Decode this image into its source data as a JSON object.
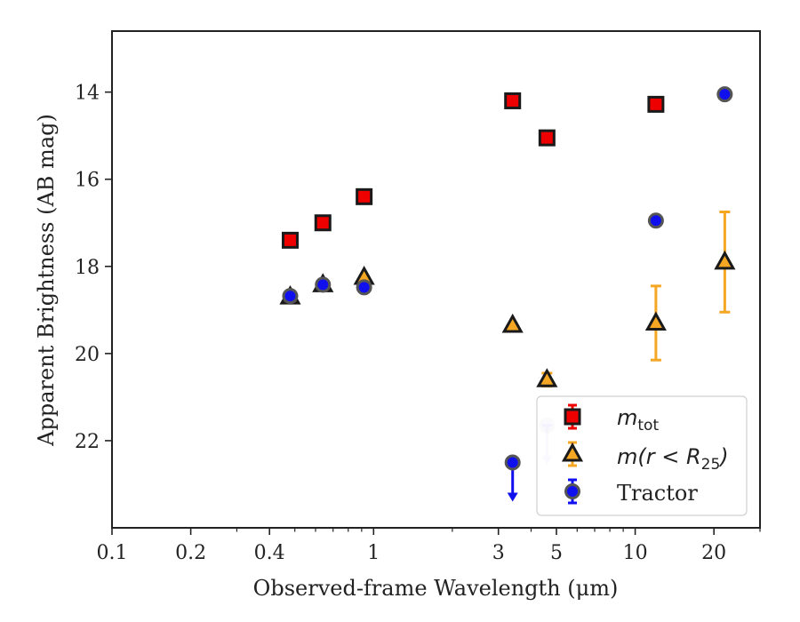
{
  "chart_data": {
    "type": "scatter",
    "xlabel": "Observed-frame Wavelength (μm)",
    "ylabel": "Apparent Brightness (AB mag)",
    "x_scale": "log",
    "y_inverted": true,
    "xlim": [
      0.1,
      30
    ],
    "ylim": [
      24.0,
      12.6
    ],
    "x_ticks": [
      {
        "value": 0.1,
        "label": "0.1"
      },
      {
        "value": 0.2,
        "label": "0.2"
      },
      {
        "value": 0.4,
        "label": "0.4"
      },
      {
        "value": 1,
        "label": "1"
      },
      {
        "value": 3,
        "label": "3"
      },
      {
        "value": 5,
        "label": "5"
      },
      {
        "value": 10,
        "label": "10"
      },
      {
        "value": 20,
        "label": "20"
      }
    ],
    "y_ticks": [
      {
        "value": 14,
        "label": "14"
      },
      {
        "value": 16,
        "label": "16"
      },
      {
        "value": 18,
        "label": "18"
      },
      {
        "value": 20,
        "label": "20"
      },
      {
        "value": 22,
        "label": "22"
      }
    ],
    "grid": false,
    "legend_position": "lower-right",
    "series": [
      {
        "label_main": "m",
        "label_sub": "tot",
        "marker": "square",
        "color": "#ee0000",
        "edge": "#1a1a1a",
        "points": [
          {
            "x": 0.48,
            "y": 17.4
          },
          {
            "x": 0.64,
            "y": 17.0
          },
          {
            "x": 0.92,
            "y": 16.4
          },
          {
            "x": 3.4,
            "y": 14.2
          },
          {
            "x": 4.6,
            "y": 15.05
          },
          {
            "x": 12.0,
            "y": 14.28
          }
        ]
      },
      {
        "label_main": "m(r < R",
        "label_sub": "25",
        "label_close": ")",
        "marker": "triangle",
        "color": "#f5a623",
        "edge": "#1a1a1a",
        "points": [
          {
            "x": 0.48,
            "y": 18.7
          },
          {
            "x": 0.64,
            "y": 18.42
          },
          {
            "x": 0.92,
            "y": 18.25
          },
          {
            "x": 3.4,
            "y": 19.35
          },
          {
            "x": 4.6,
            "y": 20.6,
            "err": 0.15
          },
          {
            "x": 12.0,
            "y": 19.3,
            "err": 0.85
          },
          {
            "x": 22.0,
            "y": 17.9,
            "err": 1.15
          }
        ]
      },
      {
        "label": "Tractor",
        "marker": "circle",
        "color": "#1010ee",
        "edge": "#555555",
        "points": [
          {
            "x": 0.48,
            "y": 18.68
          },
          {
            "x": 0.64,
            "y": 18.42
          },
          {
            "x": 0.92,
            "y": 18.48
          },
          {
            "x": 3.4,
            "y": 22.5,
            "upper_limit": true
          },
          {
            "x": 4.6,
            "y": 21.65,
            "upper_limit": true,
            "faded": true
          },
          {
            "x": 12.0,
            "y": 16.95
          },
          {
            "x": 22.0,
            "y": 14.05
          }
        ]
      }
    ]
  }
}
